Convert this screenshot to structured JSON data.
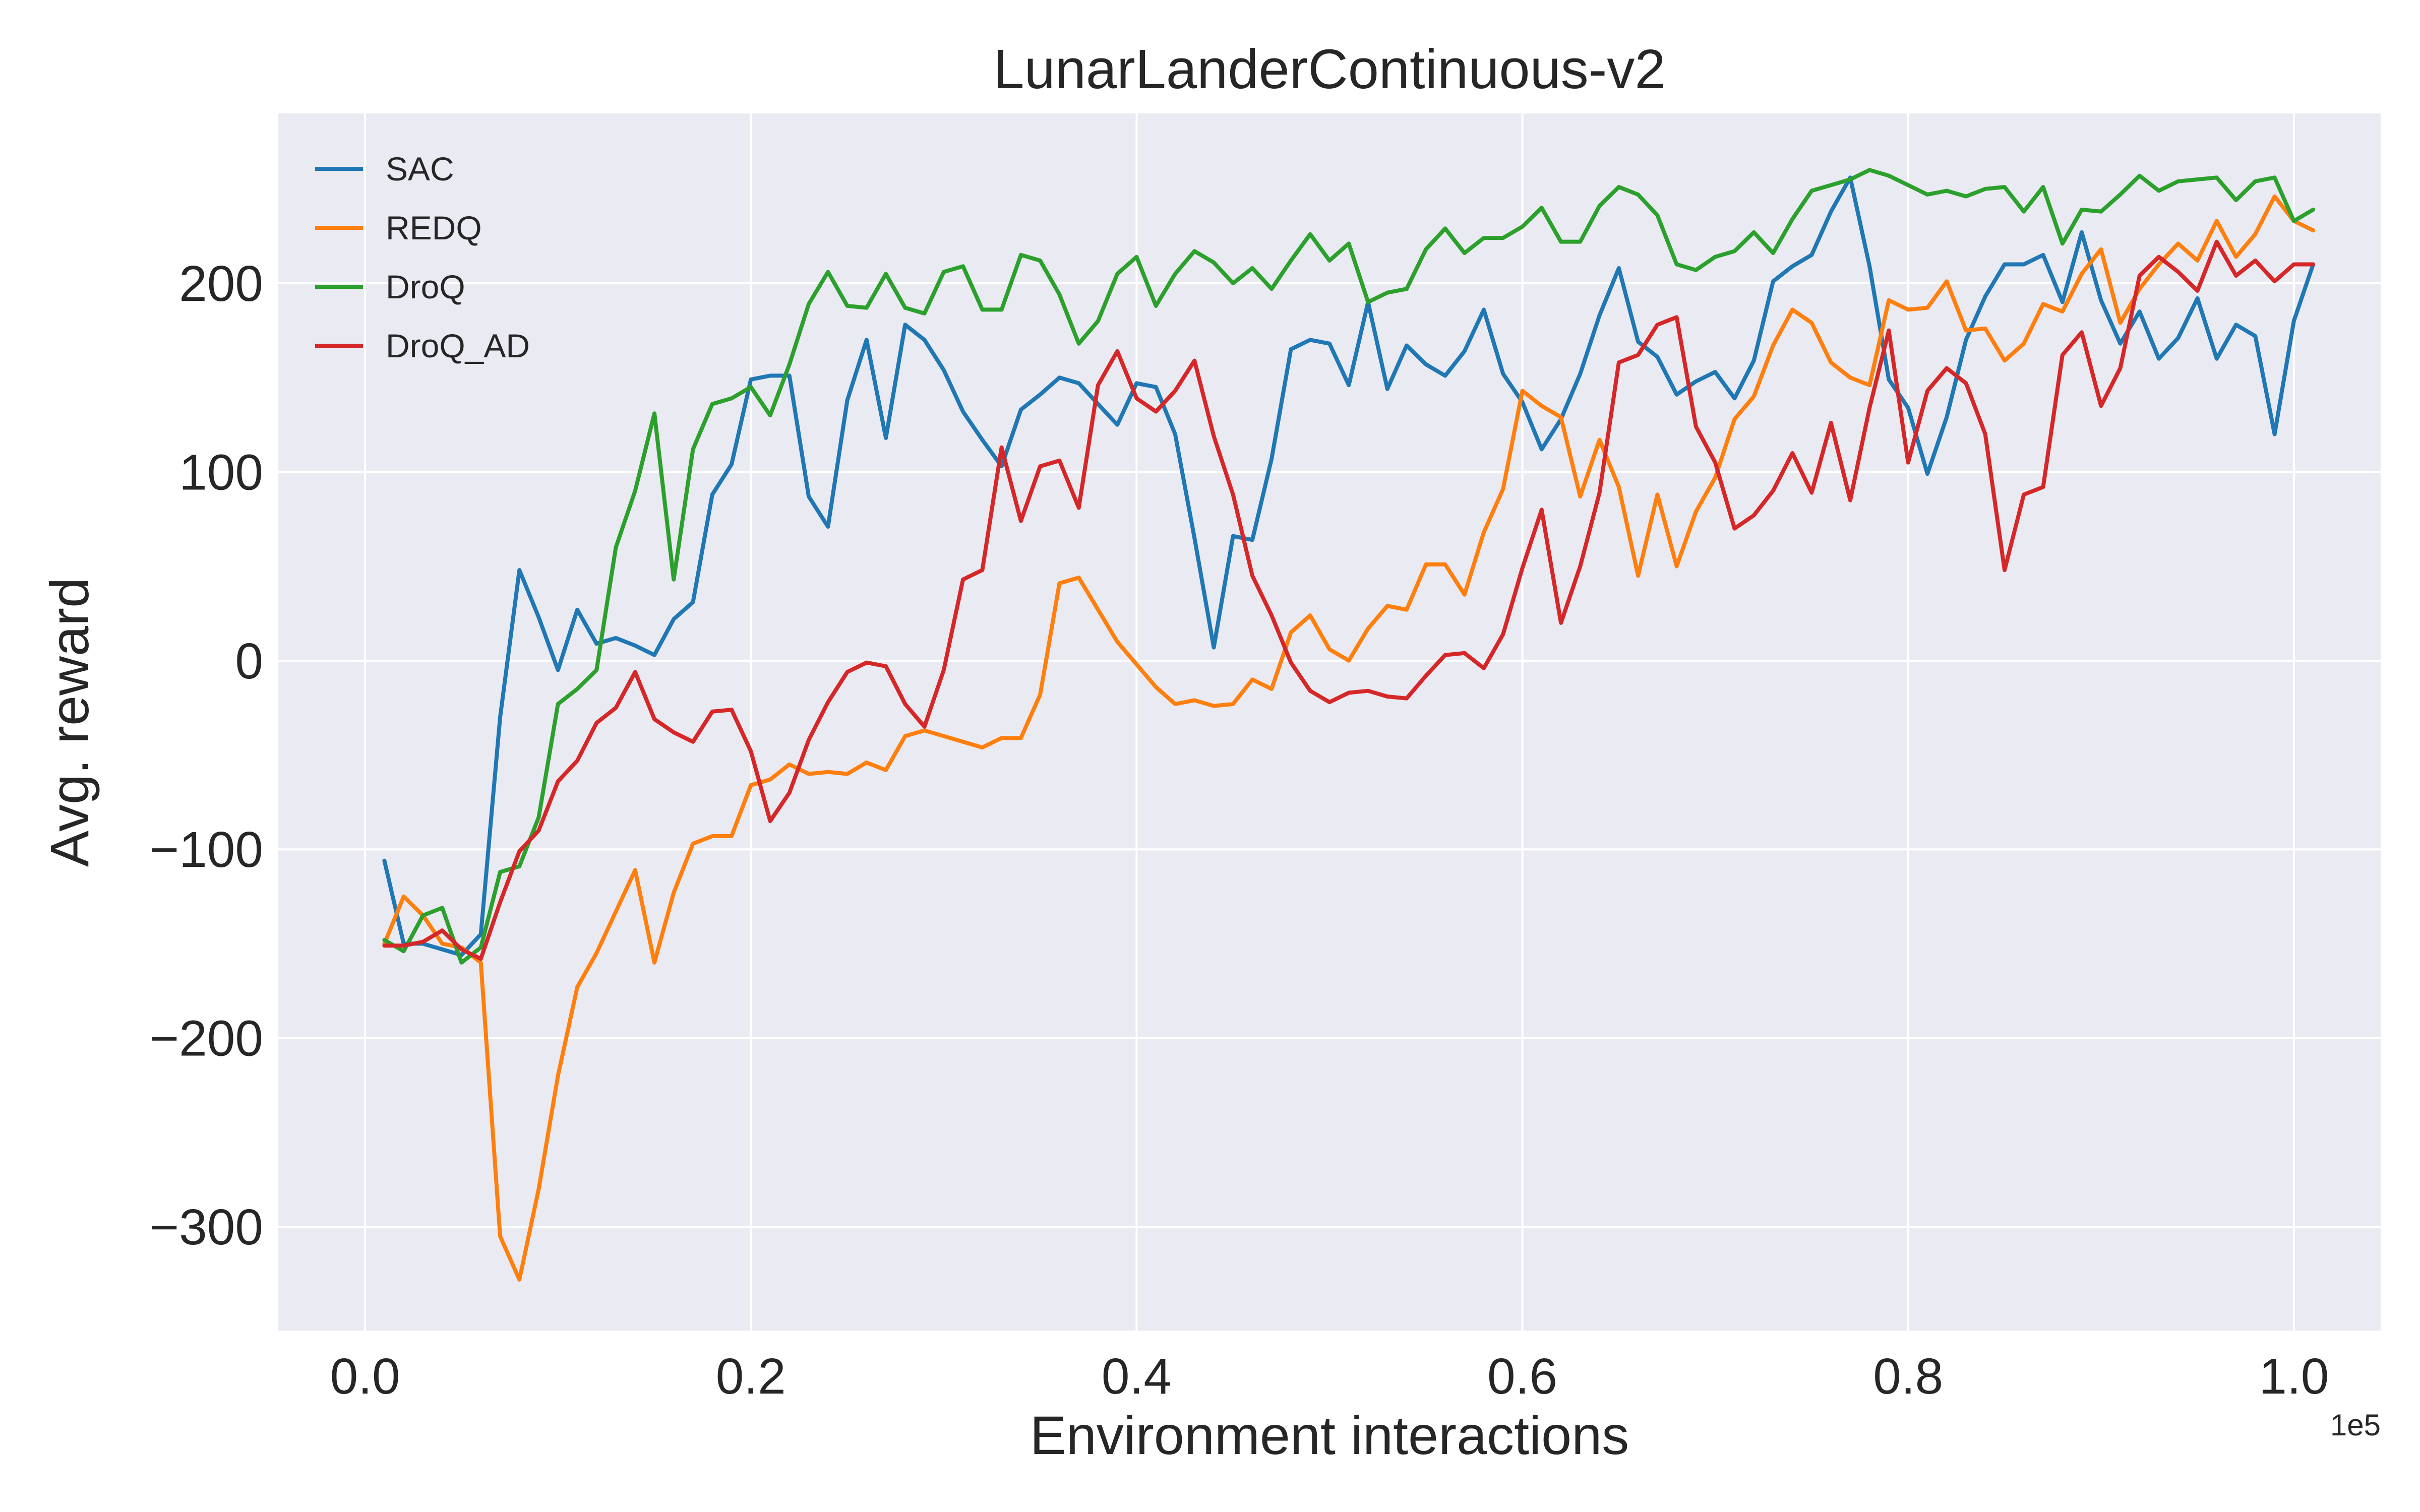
{
  "chart_data": {
    "type": "line",
    "title": "LunarLanderContinuous-v2",
    "xlabel": "Environment interactions",
    "ylabel": "Avg. reward",
    "x_offset_label": "1e5",
    "xlim": [
      -0.045,
      1.045
    ],
    "ylim": [
      -355,
      290
    ],
    "xticks": [
      0.0,
      0.2,
      0.4,
      0.6,
      0.8,
      1.0
    ],
    "xtick_labels": [
      "0.0",
      "0.2",
      "0.4",
      "0.6",
      "0.8",
      "1.0"
    ],
    "yticks": [
      -300,
      -200,
      -100,
      0,
      100,
      200
    ],
    "ytick_labels": [
      "−300",
      "−200",
      "−100",
      "0",
      "100",
      "200"
    ],
    "grid": true,
    "legend_position": "top-left",
    "background_color": "#eaeaf2",
    "x_start": 0.01,
    "x_step": 0.01,
    "series": [
      {
        "name": "SAC",
        "color": "#1f77b4",
        "values": [
          -106,
          -150,
          -150,
          -153,
          -156,
          -145,
          -30,
          48,
          23,
          -5,
          27,
          9,
          12,
          8,
          3,
          22,
          31,
          88,
          104,
          149,
          151,
          151,
          87,
          71,
          138,
          170,
          118,
          178,
          170,
          154,
          132,
          117,
          103,
          133,
          141,
          150,
          147,
          136,
          125,
          147,
          145,
          120,
          65,
          7,
          66,
          64,
          107,
          165,
          170,
          168,
          146,
          190,
          144,
          167,
          157,
          151,
          164,
          186,
          152,
          137,
          112,
          128,
          152,
          183,
          208,
          169,
          161,
          141,
          148,
          153,
          139,
          159,
          201,
          209,
          215,
          238,
          256,
          209,
          149,
          134,
          99,
          129,
          170,
          193,
          210,
          210,
          215,
          190,
          227,
          191,
          168,
          185,
          160,
          171,
          192,
          160,
          178,
          172,
          120,
          180,
          210
        ]
      },
      {
        "name": "REDQ",
        "color": "#ff7f0e",
        "values": [
          -150,
          -125,
          -135,
          -150,
          -152,
          -160,
          -305,
          -328,
          -280,
          -220,
          -173,
          -155,
          -133,
          -111,
          -160,
          -123,
          -97,
          -93,
          -93,
          -66,
          -63,
          -55,
          -60,
          -59,
          -60,
          -54,
          -58,
          -40,
          -37,
          -40,
          -43,
          -46,
          -41,
          -41,
          -18,
          41,
          44,
          27,
          10,
          -2,
          -14,
          -23,
          -21,
          -24,
          -23,
          -10,
          -15,
          15,
          24,
          6,
          0,
          17,
          29,
          27,
          51,
          51,
          35,
          68,
          91,
          143,
          135,
          129,
          87,
          117,
          92,
          45,
          88,
          50,
          79,
          97,
          128,
          140,
          167,
          186,
          179,
          158,
          150,
          146,
          191,
          186,
          187,
          201,
          175,
          176,
          159,
          168,
          189,
          185,
          205,
          218,
          179,
          197,
          210,
          221,
          212,
          233,
          214,
          226,
          246,
          233,
          228
        ]
      },
      {
        "name": "DroQ",
        "color": "#2ca02c",
        "values": [
          -148,
          -154,
          -135,
          -131,
          -160,
          -152,
          -112,
          -109,
          -83,
          -23,
          -15,
          -5,
          60,
          90,
          131,
          43,
          112,
          136,
          139,
          145,
          130,
          157,
          189,
          206,
          188,
          187,
          205,
          187,
          184,
          206,
          209,
          186,
          186,
          215,
          212,
          194,
          168,
          180,
          205,
          214,
          188,
          205,
          217,
          211,
          200,
          208,
          197,
          212,
          226,
          212,
          221,
          190,
          195,
          197,
          218,
          229,
          216,
          224,
          224,
          230,
          240,
          222,
          222,
          241,
          251,
          247,
          236,
          210,
          207,
          214,
          217,
          227,
          216,
          234,
          249,
          252,
          255,
          260,
          257,
          252,
          247,
          249,
          246,
          250,
          251,
          238,
          251,
          221,
          239,
          238,
          247,
          257,
          249,
          254,
          255,
          256,
          244,
          254,
          256,
          233,
          239
        ]
      },
      {
        "name": "DroQ_AD",
        "color": "#d62728",
        "values": [
          -151,
          -151,
          -149,
          -143,
          -153,
          -158,
          -128,
          -101,
          -90,
          -64,
          -53,
          -33,
          -25,
          -6,
          -31,
          -38,
          -43,
          -27,
          -26,
          -48,
          -85,
          -70,
          -42,
          -22,
          -6,
          -1,
          -3,
          -23,
          -35,
          -5,
          43,
          48,
          113,
          74,
          103,
          106,
          81,
          146,
          164,
          139,
          132,
          143,
          159,
          119,
          88,
          45,
          24,
          -1,
          -16,
          -22,
          -17,
          -16,
          -19,
          -20,
          -8,
          3,
          4,
          -4,
          14,
          49,
          80,
          20,
          50,
          89,
          158,
          162,
          178,
          182,
          124,
          105,
          70,
          77,
          90,
          110,
          89,
          126,
          85,
          134,
          175,
          105,
          143,
          155,
          147,
          120,
          48,
          88,
          92,
          162,
          174,
          135,
          155,
          204,
          214,
          206,
          196,
          222,
          204,
          212,
          201,
          210,
          210
        ]
      }
    ]
  }
}
